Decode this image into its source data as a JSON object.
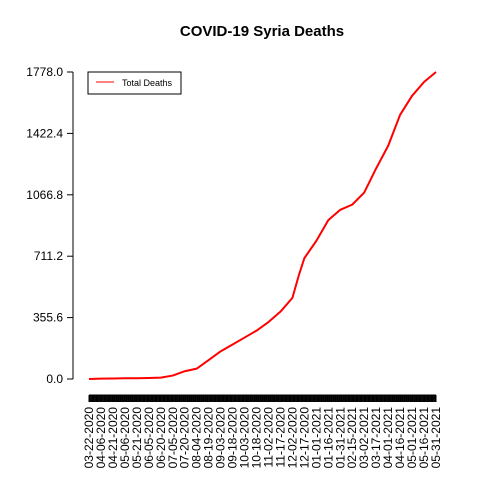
{
  "chart_data": {
    "type": "line",
    "title": "COVID-19 Syria Deaths",
    "xlabel": "",
    "ylabel": "",
    "ylim": [
      0,
      1778
    ],
    "yticks": [
      "0.0",
      "355.6",
      "711.2",
      "1066.8",
      "1422.4",
      "1778.0"
    ],
    "ytick_values": [
      0,
      355.6,
      711.2,
      1066.8,
      1422.4,
      1778.0
    ],
    "legend": {
      "placement": "top-left",
      "entries": [
        "Total Deaths"
      ]
    },
    "line_color": "#ff0000",
    "grid": false,
    "xticks": [
      "03-22-2020",
      "04-06-2020",
      "04-21-2020",
      "05-06-2020",
      "05-21-2020",
      "06-05-2020",
      "06-20-2020",
      "07-05-2020",
      "07-20-2020",
      "08-04-2020",
      "08-19-2020",
      "09-03-2020",
      "09-18-2020",
      "10-03-2020",
      "10-18-2020",
      "11-02-2020",
      "11-17-2020",
      "12-02-2020",
      "12-17-2020",
      "01-01-2021",
      "01-16-2021",
      "01-31-2021",
      "02-15-2021",
      "03-02-2021",
      "03-17-2021",
      "04-01-2021",
      "04-16-2021",
      "05-01-2021",
      "05-16-2021",
      "05-31-2021"
    ],
    "series": [
      {
        "name": "Total Deaths",
        "x": [
          "03-22-2020",
          "04-06-2020",
          "04-21-2020",
          "05-06-2020",
          "05-21-2020",
          "06-05-2020",
          "06-20-2020",
          "07-05-2020",
          "07-20-2020",
          "08-04-2020",
          "08-19-2020",
          "09-03-2020",
          "09-18-2020",
          "10-03-2020",
          "10-18-2020",
          "11-02-2020",
          "11-17-2020",
          "12-02-2020",
          "12-10-2020",
          "12-17-2020",
          "01-01-2021",
          "01-16-2021",
          "01-31-2021",
          "02-15-2021",
          "03-02-2021",
          "03-17-2021",
          "04-01-2021",
          "04-16-2021",
          "05-01-2021",
          "05-16-2021",
          "05-31-2021"
        ],
        "values": [
          0,
          2,
          3,
          4,
          4,
          6,
          8,
          20,
          45,
          60,
          110,
          160,
          200,
          240,
          280,
          330,
          390,
          470,
          600,
          700,
          800,
          920,
          980,
          1010,
          1080,
          1220,
          1350,
          1530,
          1640,
          1720,
          1778
        ]
      }
    ]
  }
}
